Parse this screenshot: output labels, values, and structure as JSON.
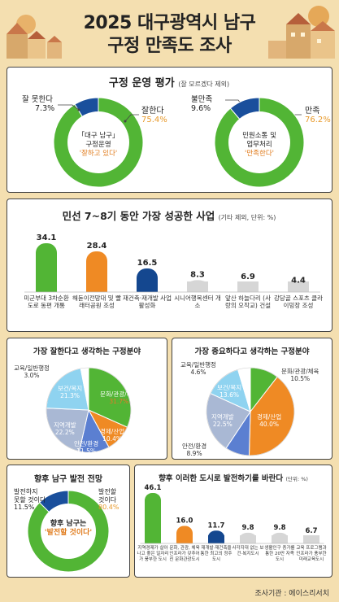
{
  "header": {
    "title_line1": "2025 대구광역시 남구",
    "title_line2": "구정 만족도 조사"
  },
  "colors": {
    "green": "#52b535",
    "blue": "#1a4f9c",
    "orange": "#ef8a24",
    "navy": "#14478f",
    "grey": "#d6d6d6",
    "highlight": "#e07b1c"
  },
  "section1": {
    "title": "구정 운영 평가",
    "note": "(잘 모르겠다 제외)",
    "donut1": {
      "center_lines": [
        "「대구 남구」",
        "구정운영"
      ],
      "center_highlight": "'잘하고 있다'",
      "neg_label": "잘 못한다",
      "neg_pct": "7.3%",
      "pos_label": "잘한다",
      "pos_pct": "75.4%"
    },
    "donut2": {
      "center_lines": [
        "민원소통 및",
        "업무처리"
      ],
      "center_highlight": "'만족한다'",
      "neg_label": "불만족",
      "neg_pct": "9.6%",
      "pos_label": "만족",
      "pos_pct": "76.2%"
    }
  },
  "section2": {
    "title": "민선 7~8기 동안 가장 성공한 사업",
    "note": "(기타 제외, 단위: %)"
  },
  "section3": {
    "left_title": "가장 잘한다고 생각하는 구정분야",
    "right_title": "가장 중요하다고 생각하는 구정분야"
  },
  "section4": {
    "left_title": "향후 남구 발전 전망",
    "left": {
      "neg_label_lines": [
        "발전하지",
        "못할 것이다"
      ],
      "neg_pct": "11.5%",
      "pos_label_lines": [
        "발전할",
        "것이다"
      ],
      "pos_pct": "80.4%",
      "center_main": "향후 남구는",
      "center_highlight": "'발전할 것이다'"
    },
    "right_title": "향후 이러한 도시로 발전하기를 바란다",
    "right_note": "(단위: %)"
  },
  "source": "조사기관 : 에이스리서치",
  "chart_data": [
    {
      "type": "pie",
      "title": "구정운영",
      "labels": [
        "잘한다",
        "잘 못한다"
      ],
      "values": [
        75.4,
        7.3
      ]
    },
    {
      "type": "pie",
      "title": "민원소통 및 업무처리",
      "labels": [
        "만족",
        "불만족"
      ],
      "values": [
        76.2,
        9.6
      ]
    },
    {
      "type": "bar",
      "title": "민선 7~8기 동안 가장 성공한 사업",
      "categories": [
        "미군부대 3차순환도로 동편 개통",
        "해돋이전망대 및 빨래터공원 조성",
        "재건축·재개발 사업 활성화",
        "시니어행복센터 개소",
        "앞산 하늘다리 (사랑의 오작교) 건설",
        "강당골 스포츠 클라이밍장 조성"
      ],
      "values": [
        34.1,
        28.4,
        16.5,
        8.3,
        6.9,
        4.4
      ],
      "colors": [
        "#52b535",
        "#ef8a24",
        "#14478f",
        "#d6d6d6",
        "#d6d6d6",
        "#d6d6d6"
      ]
    },
    {
      "type": "pie",
      "title": "가장 잘한다고 생각하는 구정분야",
      "labels": [
        "문화/관광/체육",
        "경제/산업",
        "안전/환경",
        "지역개발",
        "보건/복지",
        "교육/일반행정"
      ],
      "values": [
        31.7,
        10.4,
        11.5,
        22.2,
        21.3,
        3.0
      ],
      "colors": [
        "#52b535",
        "#ef8a24",
        "#5b7fd1",
        "#a9b8d4",
        "#8fd3f0",
        "#ffffff"
      ]
    },
    {
      "type": "pie",
      "title": "가장 중요하다고 생각하는 구정분야",
      "labels": [
        "문화/관광/체육",
        "경제/산업",
        "안전/환경",
        "지역개발",
        "보건/복지",
        "교육/일반행정"
      ],
      "values": [
        10.5,
        40.0,
        8.9,
        22.5,
        13.6,
        4.6
      ],
      "colors": [
        "#52b535",
        "#ef8a24",
        "#5b7fd1",
        "#a9b8d4",
        "#8fd3f0",
        "#ffffff"
      ]
    },
    {
      "type": "pie",
      "title": "향후 남구 발전 전망",
      "labels": [
        "발전할 것이다",
        "발전하지 못할 것이다"
      ],
      "values": [
        80.4,
        11.5
      ]
    },
    {
      "type": "bar",
      "title": "향후 이러한 도시로 발전하기를 바란다",
      "categories": [
        "지역경제가 살아나고 좋은 일자리가 풍부한 도시",
        "문화, 관광, 체육 인프라가 갖추어진 문화관광도시",
        "재개발·재건축을 통한 최고의 정주도시",
        "사각지대 없는 보건·복지도시",
        "생활인구 증가를 통한 20만 자족도시",
        "교육 프로그램과 인프라가 풍부한 미래교육도시"
      ],
      "values": [
        46.1,
        16.0,
        11.7,
        9.8,
        9.8,
        6.7
      ],
      "colors": [
        "#52b535",
        "#ef8a24",
        "#14478f",
        "#d6d6d6",
        "#d6d6d6",
        "#d6d6d6"
      ]
    }
  ]
}
